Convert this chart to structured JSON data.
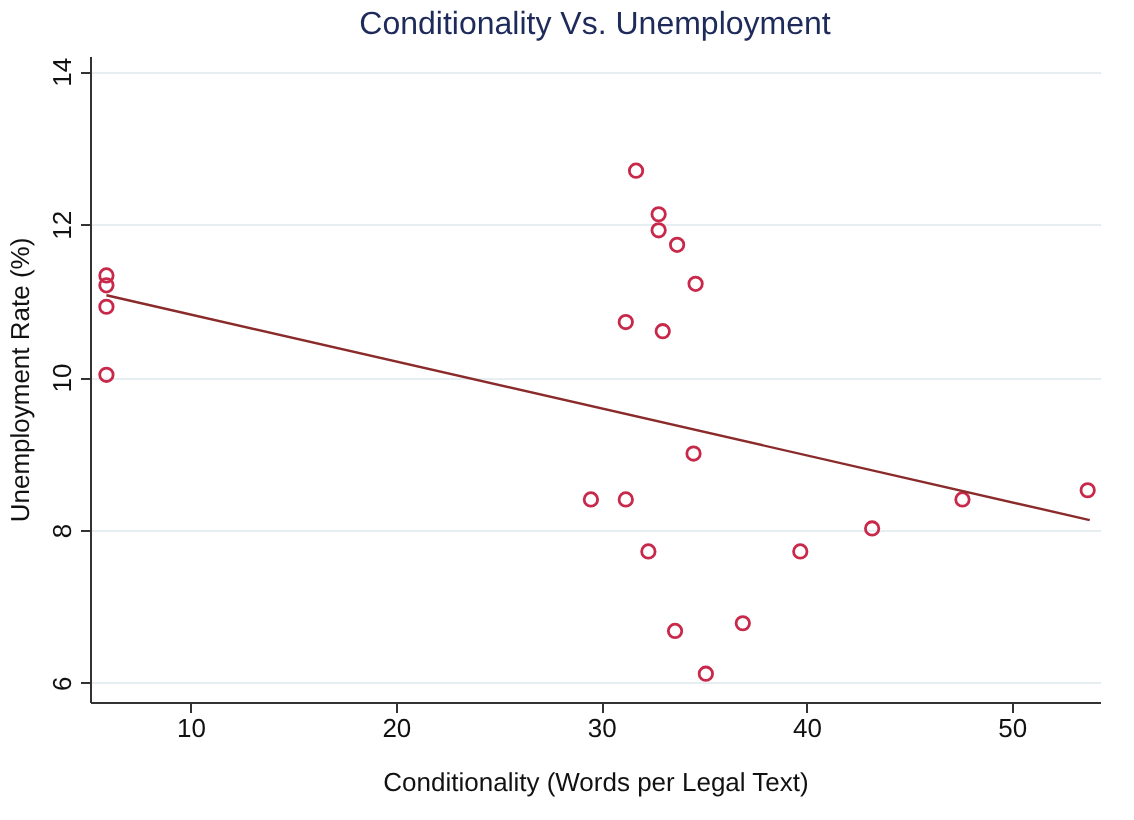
{
  "chart_data": {
    "type": "scatter",
    "title": "Conditionality Vs. Unemployment",
    "xlabel": "Conditionality (Words per Legal Text)",
    "ylabel": "Unemployment Rate (%)",
    "xlim": [
      5.1,
      54.3
    ],
    "xticks": [
      10,
      20,
      30,
      40,
      50
    ],
    "ylim": [
      5.75,
      14.2
    ],
    "yticks": [
      6,
      8,
      10,
      12,
      14
    ],
    "grid": "y",
    "series": [
      {
        "marker": "circle",
        "color": "#c8284a",
        "x": [
          5.9,
          5.9,
          5.9,
          5.9,
          31.7,
          32.8,
          32.8,
          33.7,
          34.6,
          31.2,
          33.0,
          34.5,
          29.5,
          31.2,
          47.6,
          53.7,
          32.3,
          39.7,
          43.2,
          33.6,
          36.9,
          35.1
        ],
        "values": [
          11.33,
          11.2,
          10.92,
          10.03,
          12.7,
          12.13,
          11.92,
          11.73,
          11.22,
          10.72,
          10.6,
          9.0,
          8.4,
          8.4,
          8.4,
          8.52,
          7.72,
          7.72,
          8.02,
          6.68,
          6.78,
          6.12
        ]
      },
      {
        "type": "line",
        "marker": "none",
        "color": "#8b2a2a",
        "x": [
          5.9,
          53.8
        ],
        "values": [
          11.07,
          8.13
        ]
      }
    ]
  }
}
